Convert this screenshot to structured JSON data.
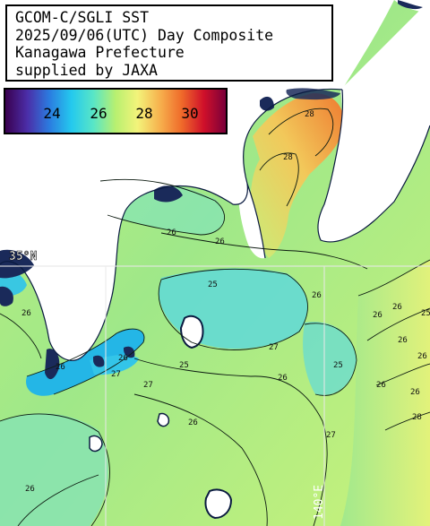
{
  "header": {
    "line1": "GCOM-C/SGLI SST",
    "line2": "2025/09/06(UTC) Day Composite",
    "line3": "Kanagawa Prefecture",
    "line4": "supplied by JAXA"
  },
  "legend": {
    "ticks": [
      "24",
      "26",
      "28",
      "30"
    ],
    "colors": [
      "#3a0050",
      "#4b2ea8",
      "#2b7ce0",
      "#24c9ee",
      "#59e6c6",
      "#b8f070",
      "#f3f37a",
      "#f7b24e",
      "#ef6a2a",
      "#d0102a",
      "#7a003a"
    ]
  },
  "map": {
    "contour_labels": [
      "25",
      "26",
      "26",
      "27",
      "25",
      "26",
      "26",
      "26",
      "25",
      "26",
      "26",
      "26",
      "25",
      "26",
      "27",
      "26",
      "26",
      "27",
      "26",
      "26",
      "27",
      "28",
      "28",
      "28",
      "26",
      "26"
    ],
    "grid_label_lon": "140°E",
    "grid_label_lat": "35°N",
    "colors": {
      "land": "#ffffff",
      "warm_sea": "#a6e88a",
      "cool_sea": "#5fd9d8",
      "cold_sea": "#24b6e6",
      "bay_warm": "#f08a3a",
      "cloud_dark": "#1a2a5a"
    }
  }
}
